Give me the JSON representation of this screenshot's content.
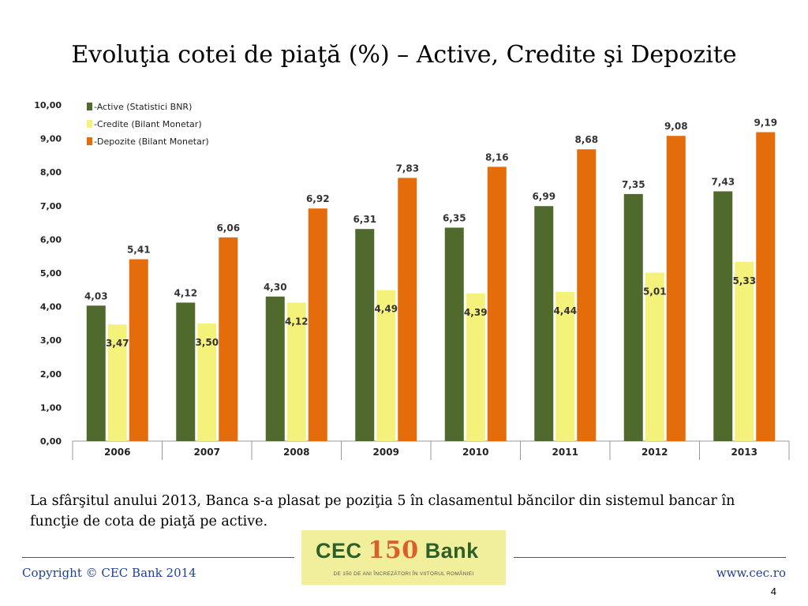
{
  "slide": {
    "title": "Evoluţia cotei de piaţă (%) – Active, Credite şi Depozite",
    "caption": "La sfârşitul anului 2013, Banca s-a plasat pe poziţia 5 în clasamentul băncilor din sistemul bancar în funcţie de cota de piaţă pe active.",
    "copyright": "Copyright © CEC Bank 2014",
    "website": "www.cec.ro",
    "page_number": "4"
  },
  "logo": {
    "text_left": "CEC",
    "text_number": "150",
    "text_right": "Bank",
    "tagline": "DE 150 DE ANI ÎNCREZĂTORI ÎN VIITORUL ROMÂNIEI"
  },
  "colors": {
    "active": "#4f6a2c",
    "credite": "#f4f27a",
    "depozite": "#e46c0a",
    "logo_green": "#2f5f28",
    "logo_orange": "#d9602a",
    "footer_text": "#1f3f9a"
  },
  "chart_data": {
    "type": "bar",
    "categories": [
      "2006",
      "2007",
      "2008",
      "2009",
      "2010",
      "2011",
      "2012",
      "2013"
    ],
    "series": [
      {
        "name": "-Active (Statistici BNR)",
        "values": [
          4.03,
          4.12,
          4.3,
          6.31,
          6.35,
          6.99,
          7.35,
          7.43
        ],
        "labels": [
          "4,03",
          "4,12",
          "4,30",
          "6,31",
          "6,35",
          "6,99",
          "7,35",
          "7,43"
        ]
      },
      {
        "name": "-Credite (Bilant Monetar)",
        "values": [
          3.47,
          3.5,
          4.12,
          4.49,
          4.39,
          4.44,
          5.01,
          5.33
        ],
        "labels": [
          "3,47",
          "3,50",
          "4,12",
          "4,49",
          "4,39",
          "4,44",
          "5,01",
          "5,33"
        ]
      },
      {
        "name": "-Depozite (Bilant Monetar)",
        "values": [
          5.41,
          6.06,
          6.92,
          7.83,
          8.16,
          8.68,
          9.08,
          9.19
        ],
        "labels": [
          "5,41",
          "6,06",
          "6,92",
          "7,83",
          "8,16",
          "8,68",
          "9,08",
          "9,19"
        ]
      }
    ],
    "ylim": [
      0,
      10
    ],
    "yticks": [
      "0,00",
      "1,00",
      "2,00",
      "3,00",
      "4,00",
      "5,00",
      "6,00",
      "7,00",
      "8,00",
      "9,00",
      "10,00"
    ],
    "legend_position": "top-left",
    "grid": false
  }
}
